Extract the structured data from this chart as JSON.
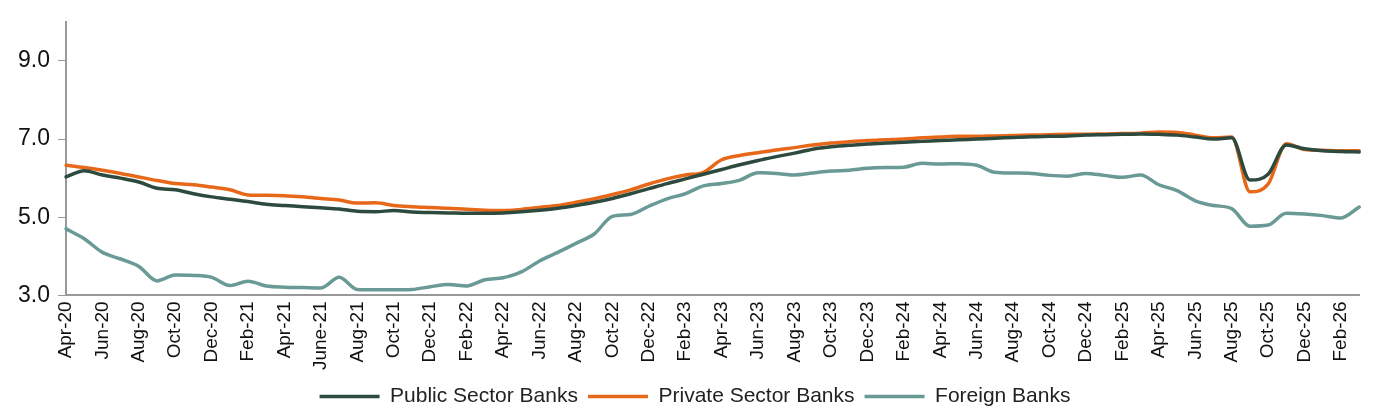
{
  "chart_data": {
    "type": "line",
    "categories": [
      "Apr-20",
      null,
      "Jun-20",
      null,
      "Aug-20",
      null,
      "Oct-20",
      null,
      "Dec-20",
      null,
      "Feb-21",
      null,
      "Apr-21",
      null,
      "June-21",
      null,
      "Aug-21",
      null,
      "Oct-21",
      null,
      "Dec-21",
      null,
      "Feb-22",
      null,
      "Apr-22",
      null,
      "Jun-22",
      null,
      "Aug-22",
      null,
      "Oct-22",
      null,
      "Dec-22",
      null,
      "Feb-23",
      null,
      "Apr-23",
      null,
      "Jun-23",
      null,
      "Aug-23",
      null,
      "Oct-23",
      null,
      "Dec-23",
      null,
      "Feb-24",
      null,
      "Apr-24",
      null,
      "Jun-24",
      null,
      "Aug-24",
      null,
      "Oct-24",
      null,
      "Dec-24",
      null,
      "Feb-25",
      null,
      "Apr-25",
      null,
      "Jun-25",
      null,
      "Aug-25",
      null,
      "Oct-25",
      null,
      "Dec-25",
      null,
      "Feb-26",
      null
    ],
    "series": [
      {
        "name": "Public Sector Banks",
        "color": "#2d4a3e",
        "values": [
          6.03,
          6.19,
          6.08,
          6.0,
          5.9,
          5.74,
          5.7,
          5.6,
          5.52,
          5.46,
          5.4,
          5.33,
          5.3,
          5.27,
          5.24,
          5.21,
          5.15,
          5.14,
          5.17,
          5.13,
          5.12,
          5.11,
          5.1,
          5.1,
          5.11,
          5.14,
          5.18,
          5.23,
          5.3,
          5.38,
          5.48,
          5.6,
          5.73,
          5.86,
          5.98,
          6.1,
          6.22,
          6.34,
          6.45,
          6.55,
          6.64,
          6.74,
          6.8,
          6.84,
          6.87,
          6.9,
          6.92,
          6.94,
          6.96,
          6.98,
          7.0,
          7.02,
          7.04,
          7.06,
          7.07,
          7.08,
          7.1,
          7.11,
          7.12,
          7.13,
          7.12,
          7.1,
          7.05,
          7.0,
          7.03,
          5.95,
          6.1,
          6.85,
          6.75,
          6.7,
          6.68,
          6.67
        ]
      },
      {
        "name": "Private Sector Banks",
        "color": "#e8681a",
        "values": [
          6.33,
          6.27,
          6.2,
          6.12,
          6.03,
          5.94,
          5.86,
          5.83,
          5.77,
          5.7,
          5.57,
          5.56,
          5.55,
          5.52,
          5.48,
          5.44,
          5.36,
          5.37,
          5.3,
          5.27,
          5.25,
          5.23,
          5.2,
          5.18,
          5.17,
          5.2,
          5.25,
          5.3,
          5.38,
          5.47,
          5.58,
          5.7,
          5.85,
          5.98,
          6.08,
          6.15,
          6.47,
          6.58,
          6.65,
          6.72,
          6.78,
          6.85,
          6.9,
          6.93,
          6.96,
          6.98,
          7.0,
          7.03,
          7.05,
          7.07,
          7.07,
          7.08,
          7.09,
          7.1,
          7.11,
          7.12,
          7.12,
          7.13,
          7.14,
          7.15,
          7.18,
          7.17,
          7.1,
          7.03,
          7.05,
          5.65,
          5.85,
          6.88,
          6.73,
          6.71,
          6.7,
          6.7
        ]
      },
      {
        "name": "Foreign Banks",
        "color": "#6a9a95",
        "values": [
          4.7,
          4.45,
          4.1,
          3.93,
          3.74,
          3.37,
          3.52,
          3.51,
          3.46,
          3.25,
          3.36,
          3.24,
          3.21,
          3.2,
          3.19,
          3.46,
          3.15,
          3.14,
          3.14,
          3.15,
          3.22,
          3.28,
          3.24,
          3.4,
          3.45,
          3.6,
          3.88,
          4.1,
          4.33,
          4.57,
          5.02,
          5.07,
          5.28,
          5.47,
          5.6,
          5.8,
          5.86,
          5.95,
          6.14,
          6.12,
          6.08,
          6.13,
          6.18,
          6.2,
          6.25,
          6.27,
          6.28,
          6.38,
          6.36,
          6.37,
          6.33,
          6.15,
          6.13,
          6.12,
          6.07,
          6.05,
          6.12,
          6.07,
          6.02,
          6.08,
          5.83,
          5.68,
          5.42,
          5.3,
          5.22,
          4.77,
          4.8,
          5.1,
          5.08,
          5.04,
          4.98,
          5.26
        ]
      }
    ],
    "ylim": [
      3,
      10
    ],
    "yticks": [
      {
        "value": 3,
        "label": "3.0"
      },
      {
        "value": 5,
        "label": "5.0"
      },
      {
        "value": 7,
        "label": "7.0"
      },
      {
        "value": 9,
        "label": "9.0"
      }
    ],
    "grid": false,
    "legend": "bottom",
    "marker": "none",
    "line_style": "solid"
  }
}
